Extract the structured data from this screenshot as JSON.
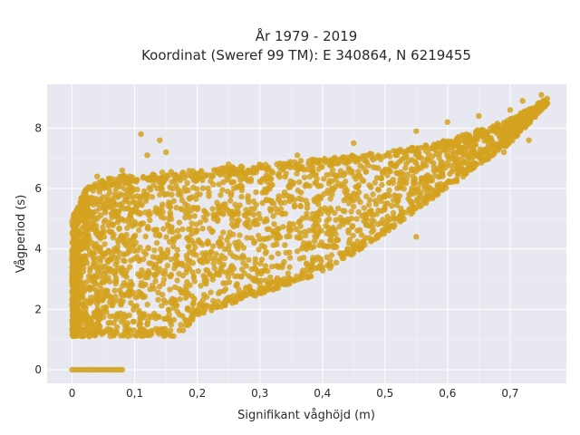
{
  "chart_data": {
    "type": "scatter",
    "title": "År 1979 - 2019",
    "subtitle": "Koordinat (Sweref 99 TM): E 340864, N 6219455",
    "xlabel": "Signifikant våghöjd (m)",
    "ylabel": "Vågperiod (s)",
    "xlim": [
      -0.04,
      0.79
    ],
    "ylim": [
      -0.45,
      9.45
    ],
    "x_ticks": [
      0,
      0.1,
      0.2,
      0.3,
      0.4,
      0.5,
      0.6,
      0.7
    ],
    "x_tick_labels": [
      "0",
      "0,1",
      "0,2",
      "0,3",
      "0,4",
      "0,5",
      "0,6",
      "0,7"
    ],
    "y_ticks": [
      0,
      2,
      4,
      6,
      8
    ],
    "y_tick_labels": [
      "0",
      "2",
      "4",
      "6",
      "8"
    ],
    "grid": true,
    "marker_color": "#D4A21F",
    "plot_background": "#E8E8F0",
    "envelope": {
      "upper": [
        [
          0.0,
          5.0
        ],
        [
          0.02,
          6.0
        ],
        [
          0.05,
          6.3
        ],
        [
          0.1,
          6.5
        ],
        [
          0.2,
          6.6
        ],
        [
          0.3,
          6.8
        ],
        [
          0.4,
          7.0
        ],
        [
          0.5,
          7.2
        ],
        [
          0.6,
          7.6
        ],
        [
          0.7,
          8.3
        ],
        [
          0.76,
          9.0
        ]
      ],
      "lower": [
        [
          0.0,
          1.1
        ],
        [
          0.1,
          1.1
        ],
        [
          0.17,
          1.1
        ],
        [
          0.2,
          1.8
        ],
        [
          0.3,
          2.5
        ],
        [
          0.4,
          3.2
        ],
        [
          0.5,
          4.5
        ],
        [
          0.6,
          6.0
        ],
        [
          0.7,
          7.5
        ],
        [
          0.76,
          8.8
        ]
      ]
    },
    "zero_period_points": {
      "x_range": [
        0.0,
        0.08
      ],
      "y": 0
    },
    "outliers": [
      [
        0.11,
        7.8
      ],
      [
        0.14,
        7.6
      ],
      [
        0.15,
        7.2
      ],
      [
        0.12,
        7.1
      ],
      [
        0.55,
        4.4
      ],
      [
        0.42,
        4.1
      ],
      [
        0.12,
        1.5
      ],
      [
        0.0,
        4.9
      ],
      [
        0.0,
        3.9
      ],
      [
        0.0,
        3.4
      ],
      [
        0.0,
        2.9
      ],
      [
        0.0,
        2.6
      ],
      [
        0.01,
        1.7
      ],
      [
        0.01,
        1.5
      ],
      [
        0.02,
        5.9
      ],
      [
        0.04,
        6.4
      ],
      [
        0.08,
        6.6
      ],
      [
        0.25,
        6.8
      ],
      [
        0.36,
        7.1
      ],
      [
        0.45,
        7.5
      ],
      [
        0.52,
        7.2
      ],
      [
        0.55,
        7.9
      ],
      [
        0.6,
        8.2
      ],
      [
        0.65,
        8.4
      ],
      [
        0.7,
        8.6
      ],
      [
        0.72,
        8.9
      ],
      [
        0.75,
        9.1
      ],
      [
        0.73,
        7.6
      ],
      [
        0.69,
        7.2
      ],
      [
        0.63,
        6.5
      ],
      [
        0.6,
        6.2
      ]
    ]
  }
}
